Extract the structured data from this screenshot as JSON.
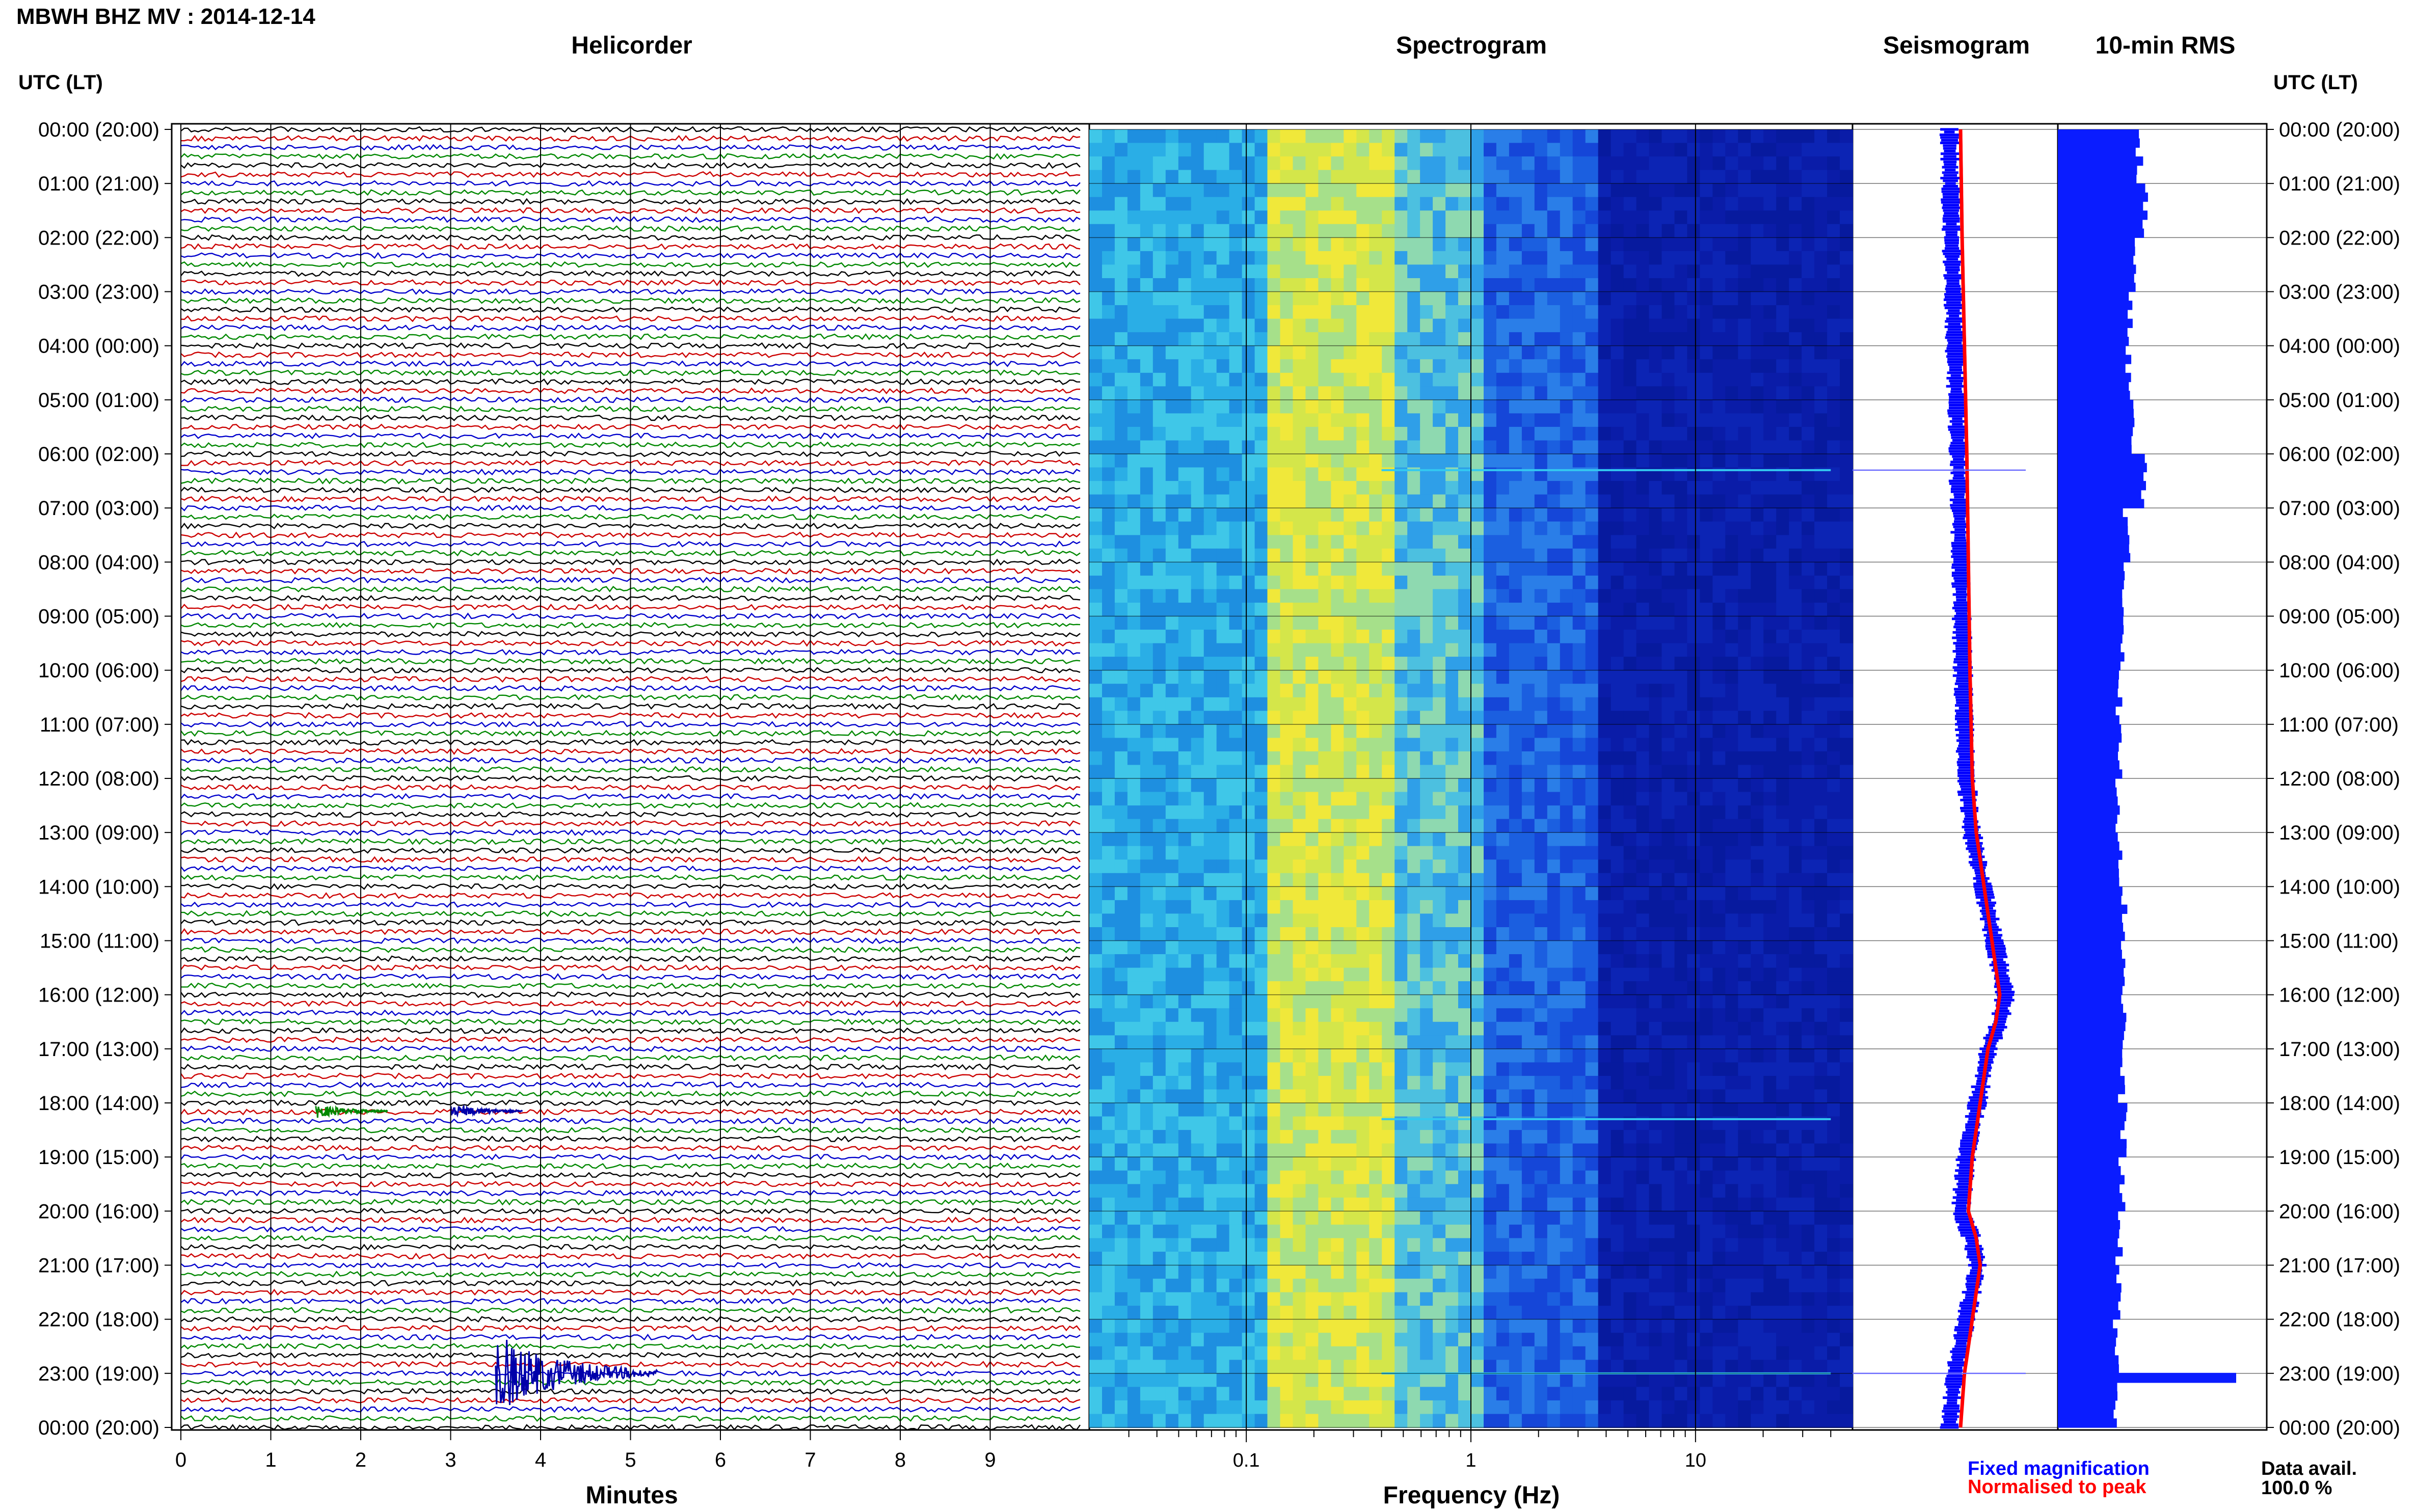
{
  "title": "MBWH BHZ MV : 2014-12-14",
  "panels": {
    "helicorder": {
      "title": "Helicorder",
      "xlabel": "Minutes",
      "xticks": [
        "0",
        "1",
        "2",
        "3",
        "4",
        "5",
        "6",
        "7",
        "8",
        "9"
      ]
    },
    "spectrogram": {
      "title": "Spectrogram",
      "xlabel": "Frequency (Hz)",
      "xticks": [
        "0.1",
        "1",
        "10"
      ],
      "xscale": "log"
    },
    "seismogram": {
      "title": "Seismogram"
    },
    "rms": {
      "title": "10-min RMS"
    }
  },
  "time_axis_label_left": "UTC (LT)",
  "time_axis_label_right": "UTC (LT)",
  "time_ticks": [
    "00:00 (20:00)",
    "01:00 (21:00)",
    "02:00 (22:00)",
    "03:00 (23:00)",
    "04:00 (00:00)",
    "05:00 (01:00)",
    "06:00 (02:00)",
    "07:00 (03:00)",
    "08:00 (04:00)",
    "09:00 (05:00)",
    "10:00 (06:00)",
    "11:00 (07:00)",
    "12:00 (08:00)",
    "13:00 (09:00)",
    "14:00 (10:00)",
    "15:00 (11:00)",
    "16:00 (12:00)",
    "17:00 (13:00)",
    "18:00 (14:00)",
    "19:00 (15:00)",
    "20:00 (16:00)",
    "21:00 (17:00)",
    "22:00 (18:00)",
    "23:00 (19:00)",
    "00:00 (20:00)"
  ],
  "legend": {
    "fixed": "Fixed magnification",
    "normalised": "Normalised to peak",
    "fixed_color": "#0000ff",
    "normalised_color": "#ff0000"
  },
  "data_avail": {
    "label": "Data avail.",
    "value": "100.0 %"
  },
  "colors": {
    "trace_cycle": [
      "#000000",
      "#cc0000",
      "#0000cc",
      "#008800"
    ],
    "rms_bar": "#0a1cff"
  },
  "chart_data": [
    {
      "type": "line",
      "title": "Helicorder",
      "xlabel": "Minutes",
      "xlim": [
        0,
        10
      ],
      "traces_per_hour": 6,
      "events": [
        {
          "hour": 18,
          "minute": 1.5,
          "color": "green"
        },
        {
          "hour": 18,
          "minute": 3.0,
          "color": "blue"
        },
        {
          "hour": 23,
          "minute": 3.5,
          "color": "blue"
        }
      ]
    },
    {
      "type": "heatmap",
      "title": "Spectrogram",
      "xlabel": "Frequency (Hz)",
      "xscale": "log",
      "xlim": [
        0.02,
        50
      ],
      "peak_band_hz": [
        0.15,
        0.4
      ],
      "notable_lines_hours": [
        6.3,
        18.3,
        23.0
      ]
    },
    {
      "type": "line",
      "title": "Seismogram",
      "series": [
        {
          "name": "Fixed magnification",
          "hours": [
            0,
            2,
            4,
            6,
            8,
            10,
            12,
            13,
            14,
            15,
            16,
            16.5,
            17,
            18,
            19,
            20,
            20.5,
            21,
            22,
            23,
            24
          ],
          "offsets": [
            0,
            0.2,
            0.5,
            0.8,
            1,
            1.2,
            1.5,
            2,
            3,
            4,
            5,
            4.5,
            3.5,
            2.5,
            1.5,
            1,
            2,
            2.5,
            1.5,
            0.5,
            0
          ]
        },
        {
          "name": "Normalised to peak",
          "hours": [
            0,
            2,
            4,
            6,
            8,
            10,
            12,
            13,
            14,
            15,
            16,
            16.5,
            17,
            18,
            19,
            20,
            20.5,
            21,
            22,
            23,
            24
          ],
          "offsets": [
            0,
            0.2,
            0.5,
            0.8,
            1,
            1.2,
            1.5,
            2,
            3,
            4,
            5,
            4.5,
            3.5,
            2.5,
            1.5,
            1,
            2,
            2.5,
            1.5,
            0.5,
            0
          ]
        }
      ]
    },
    {
      "type": "bar",
      "title": "10-min RMS",
      "orientation": "horizontal",
      "hourly_rms": [
        1.6,
        1.7,
        1.5,
        1.4,
        1.4,
        1.45,
        1.7,
        1.35,
        1.3,
        1.3,
        1.2,
        1.2,
        1.2,
        1.25,
        1.3,
        1.3,
        1.3,
        1.25,
        1.3,
        1.25,
        1.2,
        1.2,
        1.15,
        1.1
      ],
      "spike": {
        "hour": 23.0,
        "value": 3.5
      }
    }
  ]
}
